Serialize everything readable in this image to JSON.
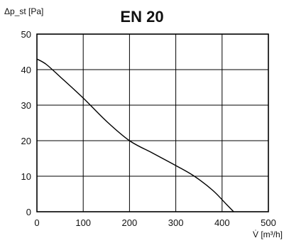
{
  "chart_data": {
    "type": "line",
    "title": "EN 20",
    "ylabel": "Δp_st [Pa]",
    "xlabel": "V̇ [m³/h]",
    "xlim": [
      0,
      500
    ],
    "ylim": [
      0,
      50
    ],
    "x_ticks": [
      "0",
      "100",
      "200",
      "300",
      "400",
      "500"
    ],
    "y_ticks": [
      "0",
      "10",
      "20",
      "30",
      "40",
      "50"
    ],
    "grid": true,
    "series": [
      {
        "x": [
          0,
          20,
          50,
          100,
          150,
          200,
          250,
          300,
          340,
          380,
          410,
          425
        ],
        "y": [
          43,
          41.5,
          38,
          32,
          25.5,
          20,
          16.5,
          13,
          10,
          6,
          2,
          0
        ]
      }
    ]
  }
}
